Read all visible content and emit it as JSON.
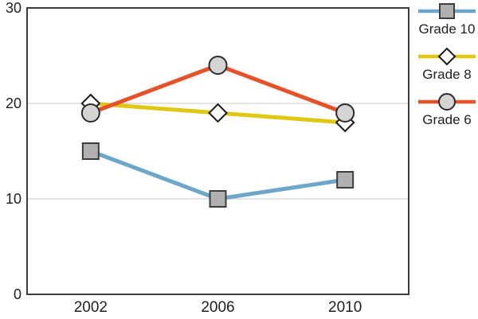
{
  "chart_data": {
    "type": "line",
    "categories": [
      "2002",
      "2006",
      "2010"
    ],
    "series": [
      {
        "name": "Grade 10",
        "values": [
          15,
          10,
          12
        ],
        "color": "#6ca6c9",
        "marker": "square",
        "marker_fill": "#b0b0b0",
        "marker_stroke": "#3d3d3d"
      },
      {
        "name": "Grade 8",
        "values": [
          20,
          19,
          18
        ],
        "color": "#e0c713",
        "marker": "diamond",
        "marker_fill": "#ffffff",
        "marker_stroke": "#1a1a1a"
      },
      {
        "name": "Grade 6",
        "values": [
          19,
          24,
          19
        ],
        "color": "#e5522a",
        "marker": "circle",
        "marker_fill": "#d4d4d4",
        "marker_stroke": "#2b2b2b"
      }
    ],
    "title": "",
    "xlabel": "",
    "ylabel": "",
    "ylim": [
      0,
      30
    ],
    "yticks": [
      0,
      10,
      20,
      30
    ],
    "gridlines": [
      10,
      20
    ],
    "grid": true,
    "legend_position": "right",
    "style": {
      "background": "#ffffff",
      "axis_border_color": "#3d3d3d",
      "gridline_color": "#c9c9c9",
      "tick_label_color": "#1f1f1f"
    }
  }
}
